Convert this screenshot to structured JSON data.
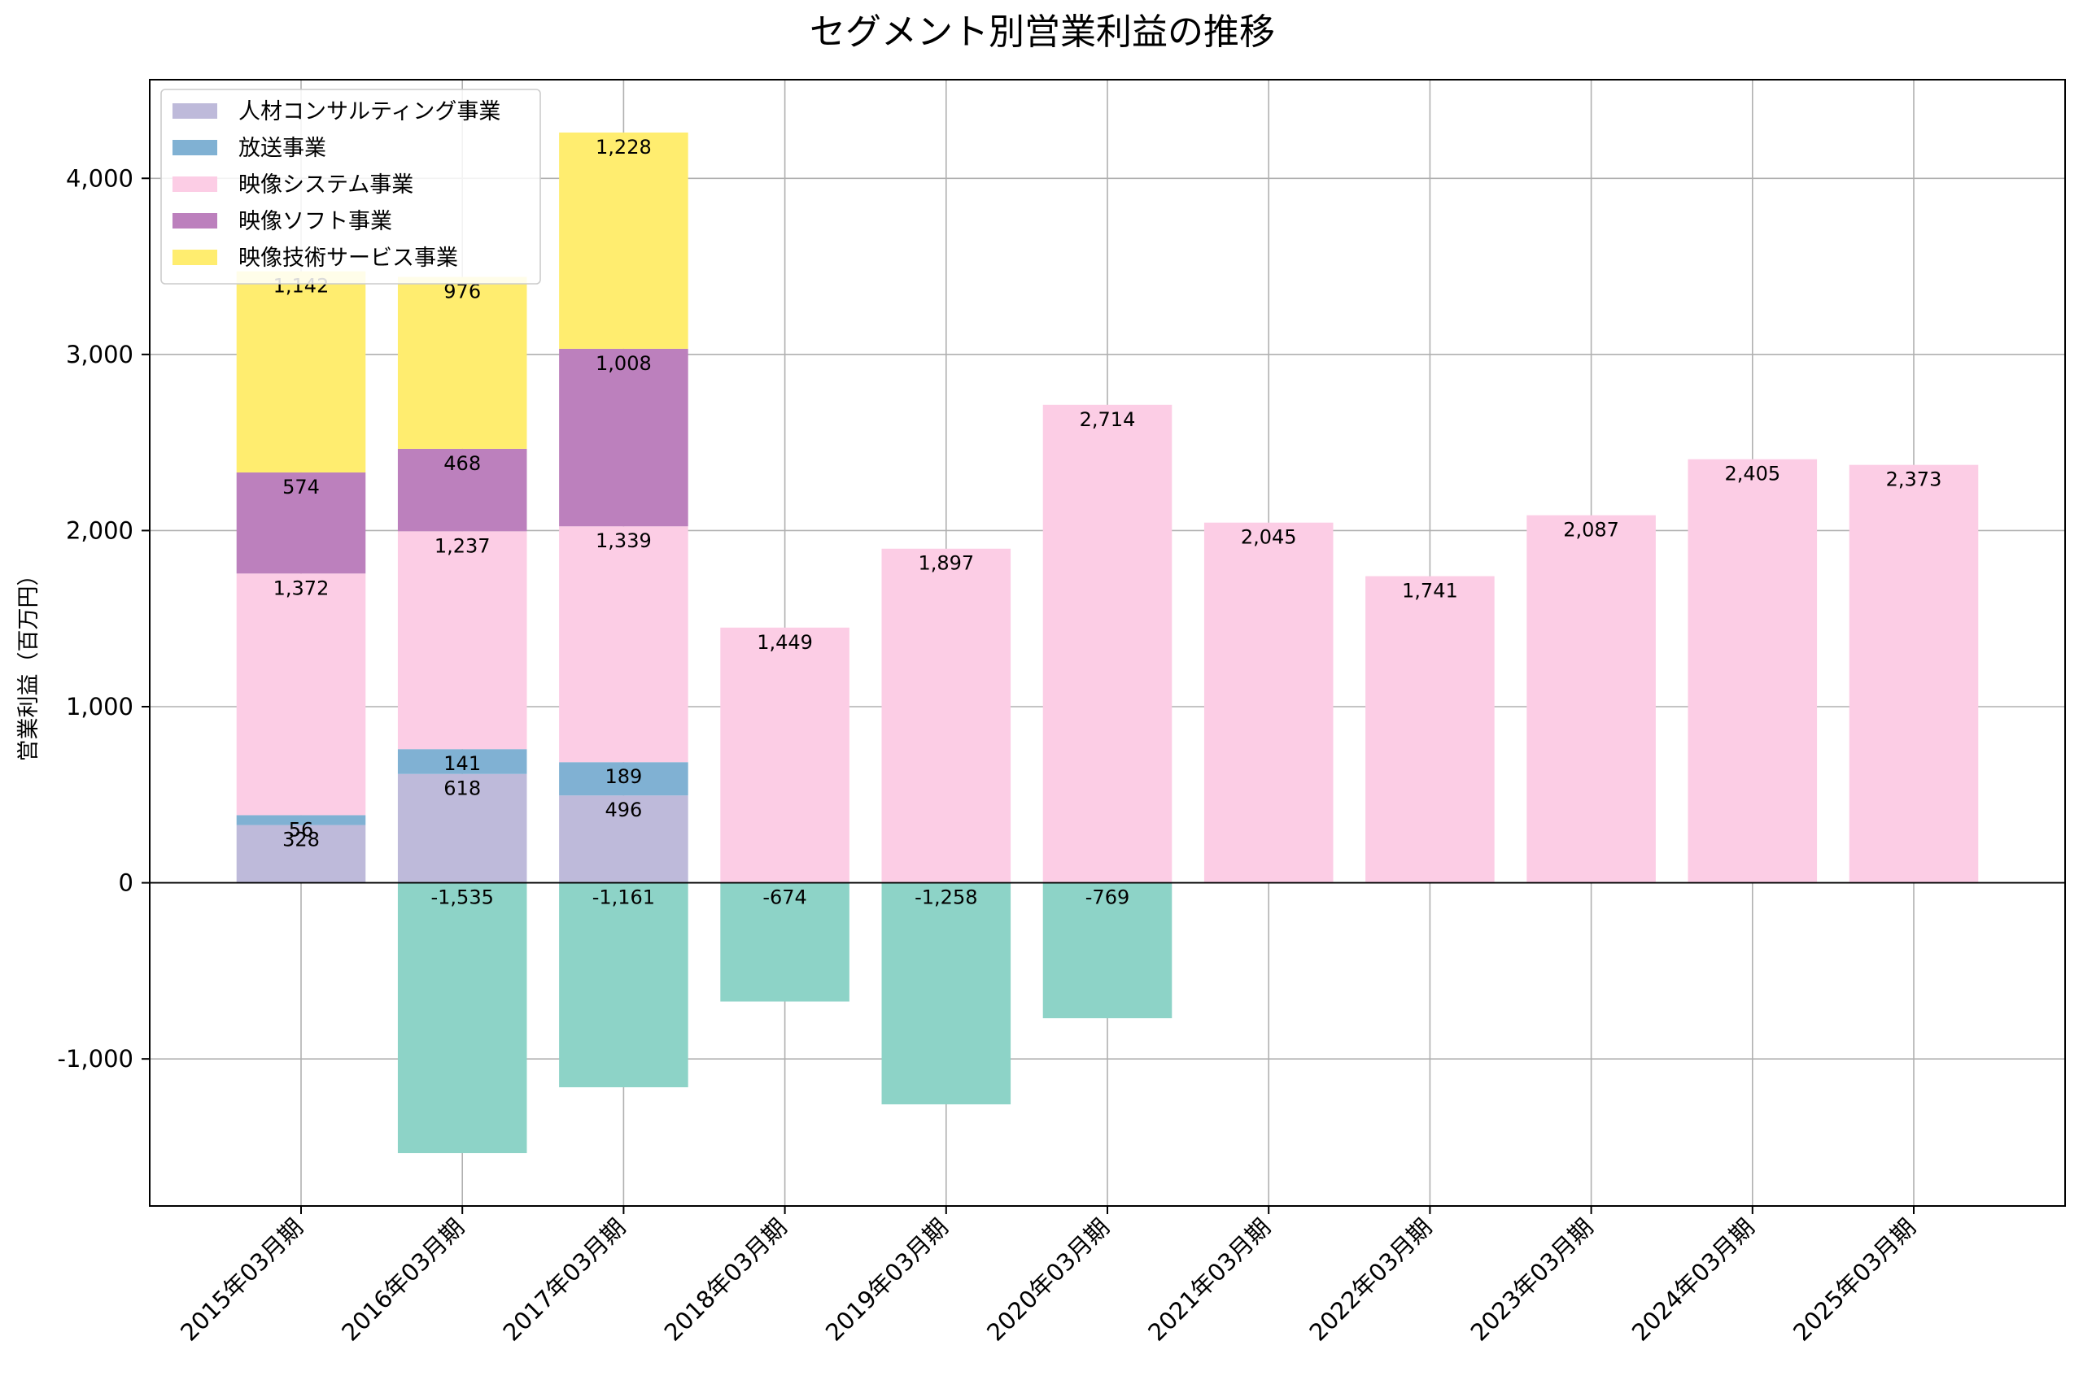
{
  "chart_data": {
    "type": "bar",
    "stacked": true,
    "title": "セグメント別営業利益の推移",
    "xlabel": "",
    "ylabel": "営業利益（百万円）",
    "ylim": [
      -1835,
      4560
    ],
    "yticks": [
      -1000,
      0,
      1000,
      2000,
      3000,
      4000
    ],
    "ytick_labels": [
      "-1,000",
      "0",
      "1,000",
      "2,000",
      "3,000",
      "4,000"
    ],
    "grid": true,
    "legend_position": "top-left",
    "categories": [
      "2015年03月期",
      "2016年03月期",
      "2017年03月期",
      "2018年03月期",
      "2019年03月期",
      "2020年03月期",
      "2021年03月期",
      "2022年03月期",
      "2023年03月期",
      "2024年03月期",
      "2025年03月期"
    ],
    "series": [
      {
        "name": "人材コンサルティング事業",
        "color": "#bebada",
        "in_legend": true,
        "values": [
          328,
          618,
          496,
          null,
          null,
          null,
          null,
          null,
          null,
          null,
          null
        ],
        "labels": [
          "328",
          "618",
          "496",
          null,
          null,
          null,
          null,
          null,
          null,
          null,
          null
        ]
      },
      {
        "name": "放送事業",
        "color": "#80b1d3",
        "in_legend": true,
        "values": [
          56,
          141,
          189,
          null,
          null,
          null,
          null,
          null,
          null,
          null,
          null
        ],
        "labels": [
          "56",
          "141",
          "189",
          null,
          null,
          null,
          null,
          null,
          null,
          null,
          null
        ]
      },
      {
        "name": "映像システム事業",
        "color": "#fccde5",
        "in_legend": true,
        "values": [
          1372,
          1237,
          1339,
          1449,
          1897,
          2714,
          2045,
          1741,
          2087,
          2405,
          2373
        ],
        "labels": [
          "1,372",
          "1,237",
          "1,339",
          "1,449",
          "1,897",
          "2,714",
          "2,045",
          "1,741",
          "2,087",
          "2,405",
          "2,373"
        ]
      },
      {
        "name": "映像ソフト事業",
        "color": "#bc80bd",
        "in_legend": true,
        "values": [
          574,
          468,
          1008,
          null,
          null,
          null,
          null,
          null,
          null,
          null,
          null
        ],
        "labels": [
          "574",
          "468",
          "1,008",
          null,
          null,
          null,
          null,
          null,
          null,
          null,
          null
        ]
      },
      {
        "name": "映像技術サービス事業",
        "color": "#ffed6f",
        "in_legend": true,
        "values": [
          1142,
          976,
          1228,
          null,
          null,
          null,
          null,
          null,
          null,
          null,
          null
        ],
        "labels": [
          "1,142",
          "976",
          "1,228",
          null,
          null,
          null,
          null,
          null,
          null,
          null,
          null
        ]
      },
      {
        "name": "",
        "color": "#8dd3c7",
        "in_legend": false,
        "values": [
          null,
          -1535,
          -1161,
          -674,
          -1258,
          -769,
          null,
          null,
          null,
          null,
          null
        ],
        "labels": [
          null,
          "-1,535",
          "-1,161",
          "-674",
          "-1,258",
          "-769",
          null,
          null,
          null,
          null,
          null
        ]
      }
    ]
  }
}
